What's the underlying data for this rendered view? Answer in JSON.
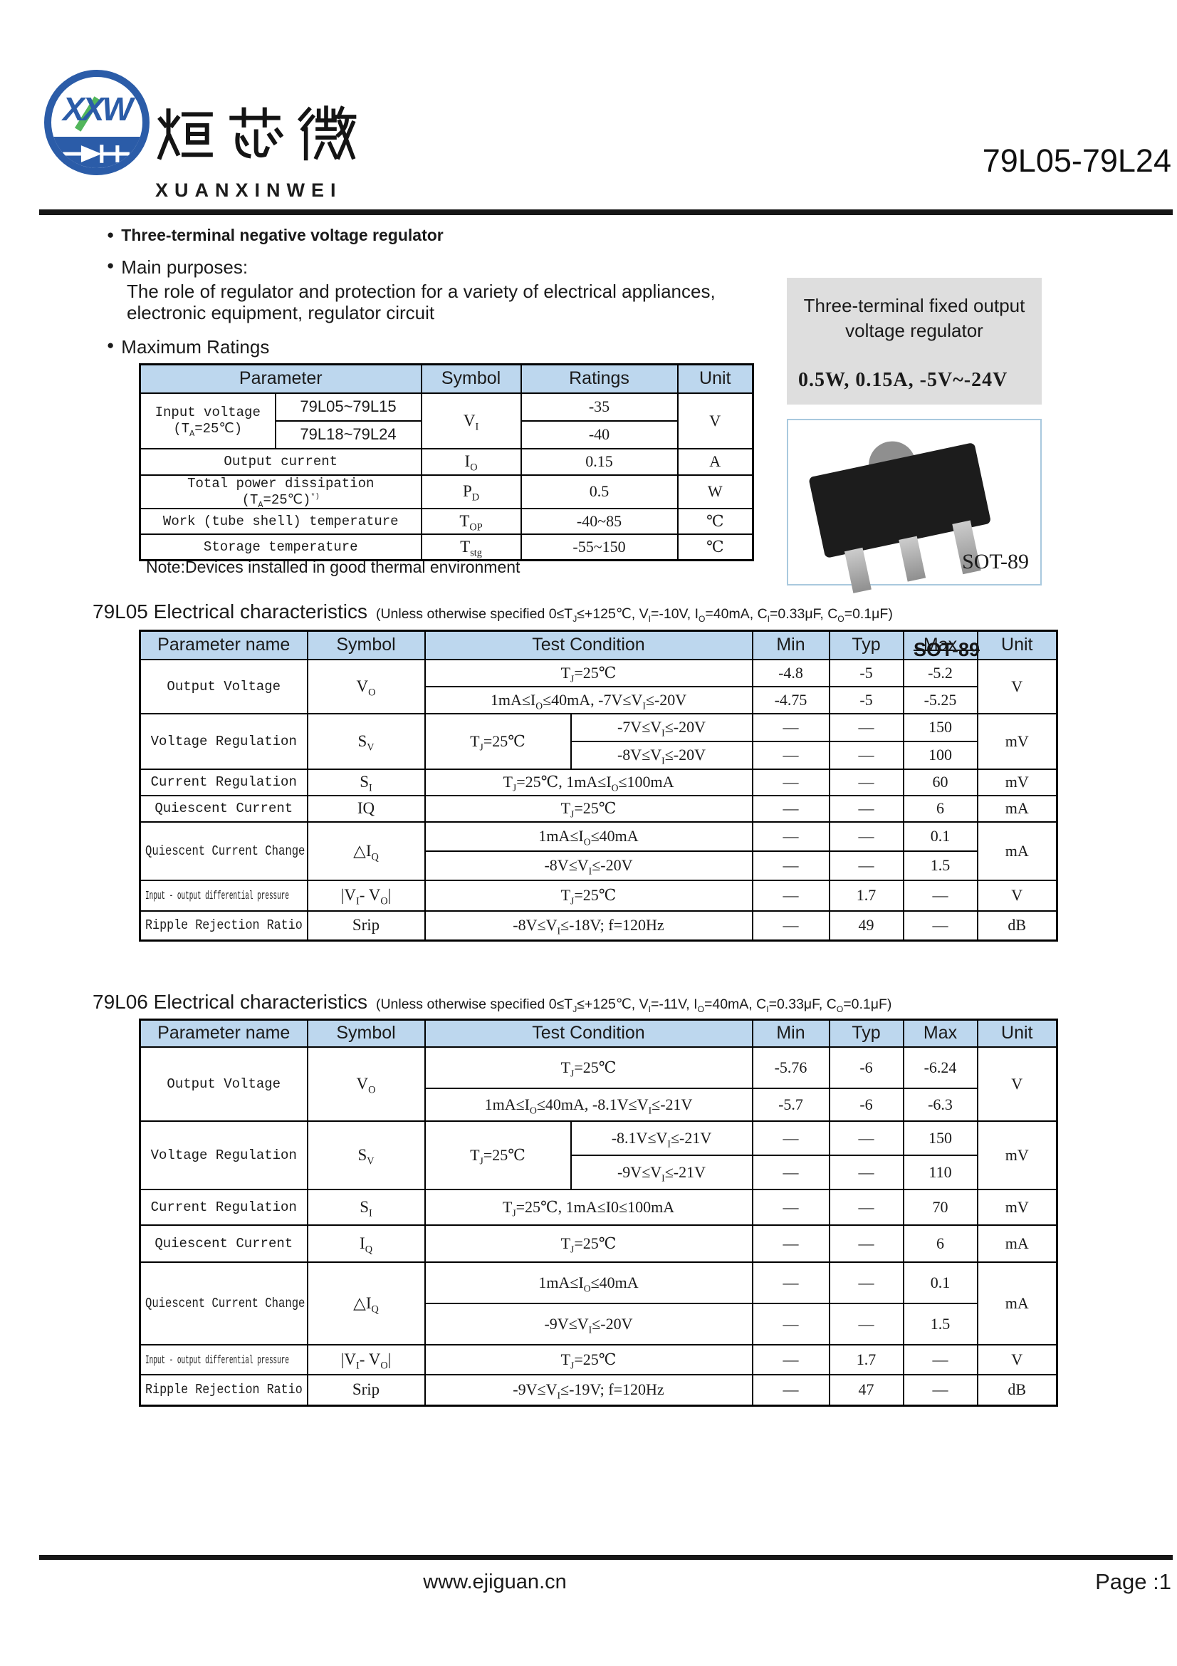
{
  "colors": {
    "header-blue": "#bdd7ee",
    "accent-blue": "#2b5ca8",
    "accent-green": "#3fae49",
    "gray-box": "#dedede"
  },
  "header": {
    "logo_letters": "XXW",
    "cn_name": "烜芯微",
    "en_name": "XUANXINWEI",
    "part_number": "79L05-79L24"
  },
  "bullets": {
    "feature": "Three-terminal negative voltage regulator",
    "purposes_label": "Main purposes:",
    "purpose_line1": "The role of regulator and protection for a variety of electrical appliances,",
    "purpose_line2": "electronic equipment, regulator circuit",
    "max_ratings_label": "Maximum Ratings"
  },
  "side_panel": {
    "title_line1": "Three-terminal fixed output",
    "title_line2": "voltage regulator",
    "specs": "0.5W, 0.15A, -5V~-24V",
    "package_label": "SOT-89"
  },
  "sot89_overlay": "SOT-89",
  "max_ratings": {
    "headers": {
      "parameter": "Parameter",
      "symbol": "Symbol",
      "ratings": "Ratings",
      "unit": "Unit"
    },
    "input_voltage": {
      "name_line1": "Input voltage",
      "name_line2": [
        {
          "t": "(T"
        },
        {
          "sub": "A"
        },
        {
          "t": "=25℃)"
        }
      ],
      "model_a": "79L05~79L15",
      "model_b": "79L18~79L24",
      "symbol": [
        {
          "t": "V"
        },
        {
          "sub": "I"
        }
      ],
      "rating_a": "-35",
      "rating_b": "-40",
      "unit": "V"
    },
    "output_current": {
      "name": "Output current",
      "symbol": [
        {
          "t": "I"
        },
        {
          "sub": "O"
        }
      ],
      "rating": "0.15",
      "unit": "A"
    },
    "total_power": {
      "name": [
        {
          "t": "Total power dissipation (T"
        },
        {
          "sub": "A"
        },
        {
          "t": "=25℃)"
        },
        {
          "sup": "*)"
        }
      ],
      "symbol": [
        {
          "t": "P"
        },
        {
          "sub": "D"
        }
      ],
      "rating": "0.5",
      "unit": "W"
    },
    "work_temp": {
      "name": "Work (tube shell) temperature",
      "symbol": [
        {
          "t": "T"
        },
        {
          "sub": "OP"
        }
      ],
      "rating": "-40~85",
      "unit": "℃"
    },
    "storage_temp": {
      "name": "Storage temperature",
      "symbol": [
        {
          "t": "T"
        },
        {
          "sub": "stg"
        }
      ],
      "rating": "-55~150",
      "unit": "℃"
    },
    "note": "Note:Devices installed in good thermal environment"
  },
  "t05": {
    "title": "79L05 Electrical characteristics",
    "conds": [
      {
        "t": "(Unless otherwise specified  0≤T"
      },
      {
        "sub": "J"
      },
      {
        "t": "≤+125℃,  V"
      },
      {
        "sub": "I"
      },
      {
        "t": "=-10V,  I"
      },
      {
        "sub": "O"
      },
      {
        "t": "=40mA,  C"
      },
      {
        "sub": "I"
      },
      {
        "t": "=0.33μF,  C"
      },
      {
        "sub": "O"
      },
      {
        "t": "=0.1μF)"
      }
    ],
    "headers": {
      "param": "Parameter name",
      "symbol": "Symbol",
      "tc": "Test Condition",
      "min": "Min",
      "typ": "Typ",
      "max": "Max",
      "unit": "Unit"
    },
    "output_voltage": {
      "name": "Output Voltage",
      "symbol": [
        {
          "t": "V"
        },
        {
          "sub": "O"
        }
      ],
      "tc1": [
        {
          "t": "T"
        },
        {
          "sub": "J"
        },
        {
          "t": "=25℃"
        }
      ],
      "r1": [
        "-4.8",
        "-5",
        "-5.2"
      ],
      "tc2": [
        {
          "t": "1mA≤I"
        },
        {
          "sub": "O"
        },
        {
          "t": "≤40mA,  -7V≤V"
        },
        {
          "sub": "I"
        },
        {
          "t": "≤-20V"
        }
      ],
      "r2": [
        "-4.75",
        "-5",
        "-5.25"
      ],
      "unit": "V"
    },
    "voltage_regulation": {
      "name": "Voltage Regulation",
      "symbol": [
        {
          "t": "S"
        },
        {
          "sub": "V"
        }
      ],
      "tc_left": [
        {
          "t": "T"
        },
        {
          "sub": "J"
        },
        {
          "t": "=25℃"
        }
      ],
      "tc1": [
        {
          "t": "-7V≤V"
        },
        {
          "sub": "I"
        },
        {
          "t": "≤-20V"
        }
      ],
      "r1": [
        "—",
        "—",
        "150"
      ],
      "tc2": [
        {
          "t": "-8V≤V"
        },
        {
          "sub": "I"
        },
        {
          "t": "≤-20V"
        }
      ],
      "r2": [
        "—",
        "—",
        "100"
      ],
      "unit": "mV"
    },
    "current_regulation": {
      "name": "Current Regulation",
      "symbol": [
        {
          "t": "S"
        },
        {
          "sub": "I"
        }
      ],
      "tc": [
        {
          "t": "T"
        },
        {
          "sub": "J"
        },
        {
          "t": "=25℃,  1mA≤I"
        },
        {
          "sub": "O"
        },
        {
          "t": "≤100mA"
        }
      ],
      "r": [
        "—",
        "—",
        "60"
      ],
      "unit": "mV"
    },
    "quiescent_current": {
      "name": "Quiescent Current",
      "symbol": "IQ",
      "tc": [
        {
          "t": "T"
        },
        {
          "sub": "J"
        },
        {
          "t": "=25℃"
        }
      ],
      "r": [
        "—",
        "—",
        "6"
      ],
      "unit": "mA"
    },
    "qcc": {
      "name": "Quiescent Current Change",
      "symbol": [
        {
          "t": "△I"
        },
        {
          "sub": "Q"
        }
      ],
      "tc1": [
        {
          "t": "1mA≤I"
        },
        {
          "sub": "O"
        },
        {
          "t": "≤40mA"
        }
      ],
      "r1": [
        "—",
        "—",
        "0.1"
      ],
      "tc2": [
        {
          "t": "-8V≤V"
        },
        {
          "sub": "I"
        },
        {
          "t": "≤-20V"
        }
      ],
      "r2": [
        "—",
        "—",
        "1.5"
      ],
      "unit": "mA"
    },
    "io_diff": {
      "name": "Input - output differential pressure",
      "symbol": [
        {
          "t": "|V"
        },
        {
          "sub": "I"
        },
        {
          "t": "- V"
        },
        {
          "sub": "O"
        },
        {
          "t": "|"
        }
      ],
      "tc": [
        {
          "t": "T"
        },
        {
          "sub": "J"
        },
        {
          "t": "=25℃"
        }
      ],
      "r": [
        "—",
        "1.7",
        "—"
      ],
      "unit": "V"
    },
    "ripple": {
      "name": "Ripple Rejection Ratio",
      "symbol": "Srip",
      "tc": [
        {
          "t": "-8V≤V"
        },
        {
          "sub": "I"
        },
        {
          "t": "≤-18V;  f=120Hz"
        }
      ],
      "r": [
        "—",
        "49",
        "—"
      ],
      "unit": "dB"
    }
  },
  "t06": {
    "title": "79L06 Electrical characteristics",
    "conds": [
      {
        "t": "(Unless otherwise specified  0≤T"
      },
      {
        "sub": "J"
      },
      {
        "t": "≤+125℃,  V"
      },
      {
        "sub": "I"
      },
      {
        "t": "=-11V,  I"
      },
      {
        "sub": "O"
      },
      {
        "t": "=40mA,  C"
      },
      {
        "sub": "I"
      },
      {
        "t": "=0.33μF,  C"
      },
      {
        "sub": "O"
      },
      {
        "t": "=0.1μF)"
      }
    ],
    "headers": {
      "param": "Parameter name",
      "symbol": "Symbol",
      "tc": "Test Condition",
      "min": "Min",
      "typ": "Typ",
      "max": "Max",
      "unit": "Unit"
    },
    "output_voltage": {
      "name": "Output Voltage",
      "symbol": [
        {
          "t": "V"
        },
        {
          "sub": "O"
        }
      ],
      "tc1": [
        {
          "t": "T"
        },
        {
          "sub": "J"
        },
        {
          "t": "=25℃"
        }
      ],
      "r1": [
        "-5.76",
        "-6",
        "-6.24"
      ],
      "tc2": [
        {
          "t": "1mA≤I"
        },
        {
          "sub": "O"
        },
        {
          "t": "≤40mA,  -8.1V≤V"
        },
        {
          "sub": "I"
        },
        {
          "t": "≤-21V"
        }
      ],
      "r2": [
        "-5.7",
        "-6",
        "-6.3"
      ],
      "unit": "V"
    },
    "voltage_regulation": {
      "name": "Voltage Regulation",
      "symbol": [
        {
          "t": "S"
        },
        {
          "sub": "V"
        }
      ],
      "tc_left": [
        {
          "t": "T"
        },
        {
          "sub": "J"
        },
        {
          "t": "=25℃"
        }
      ],
      "tc1": [
        {
          "t": "-8.1V≤V"
        },
        {
          "sub": "I"
        },
        {
          "t": "≤-21V"
        }
      ],
      "r1": [
        "—",
        "—",
        "150"
      ],
      "tc2": [
        {
          "t": "-9V≤V"
        },
        {
          "sub": "I"
        },
        {
          "t": "≤-21V"
        }
      ],
      "r2": [
        "—",
        "—",
        "110"
      ],
      "unit": "mV"
    },
    "current_regulation": {
      "name": "Current Regulation",
      "symbol": [
        {
          "t": "S"
        },
        {
          "sub": "I"
        }
      ],
      "tc": [
        {
          "t": "T"
        },
        {
          "sub": "J"
        },
        {
          "t": "=25℃,  1mA≤I0≤100mA"
        }
      ],
      "r": [
        "—",
        "—",
        "70"
      ],
      "unit": "mV"
    },
    "quiescent_current": {
      "name": "Quiescent Current",
      "symbol": [
        {
          "t": "I"
        },
        {
          "sub": "Q"
        }
      ],
      "tc": [
        {
          "t": "T"
        },
        {
          "sub": "J"
        },
        {
          "t": "=25℃"
        }
      ],
      "r": [
        "—",
        "—",
        "6"
      ],
      "unit": "mA"
    },
    "qcc": {
      "name": "Quiescent Current Change",
      "symbol": [
        {
          "t": "△I"
        },
        {
          "sub": "Q"
        }
      ],
      "tc1": [
        {
          "t": "1mA≤I"
        },
        {
          "sub": "O"
        },
        {
          "t": "≤40mA"
        }
      ],
      "r1": [
        "—",
        "—",
        "0.1"
      ],
      "tc2": [
        {
          "t": "-9V≤V"
        },
        {
          "sub": "I"
        },
        {
          "t": "≤-20V"
        }
      ],
      "r2": [
        "—",
        "—",
        "1.5"
      ],
      "unit": "mA"
    },
    "io_diff": {
      "name": "Input - output differential pressure",
      "symbol": [
        {
          "t": "|V"
        },
        {
          "sub": "I"
        },
        {
          "t": "- V"
        },
        {
          "sub": "O"
        },
        {
          "t": "|"
        }
      ],
      "tc": [
        {
          "t": "T"
        },
        {
          "sub": "J"
        },
        {
          "t": "=25℃"
        }
      ],
      "r": [
        "—",
        "1.7",
        "—"
      ],
      "unit": "V"
    },
    "ripple": {
      "name": "Ripple Rejection Ratio",
      "symbol": "Srip",
      "tc": [
        {
          "t": "-9V≤V"
        },
        {
          "sub": "I"
        },
        {
          "t": "≤-19V;  f=120Hz"
        }
      ],
      "r": [
        "—",
        "47",
        "—"
      ],
      "unit": "dB"
    }
  },
  "footer": {
    "url": "www.ejiguan.cn",
    "page": "Page :1"
  }
}
